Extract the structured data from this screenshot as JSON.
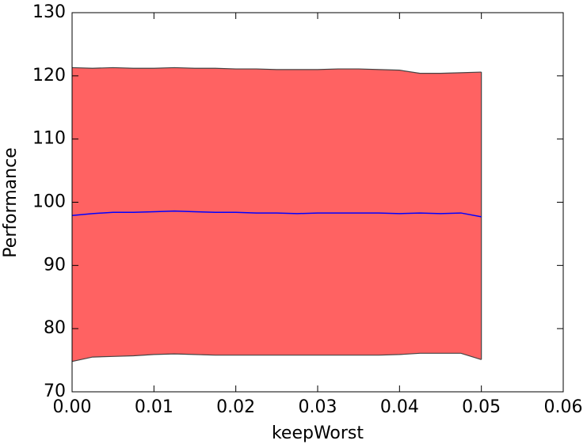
{
  "chart_data": {
    "type": "line",
    "xlabel": "keepWorst",
    "ylabel": "Performance",
    "x": [
      0,
      0.0025,
      0.005,
      0.0075,
      0.01,
      0.0125,
      0.015,
      0.0175,
      0.02,
      0.0225,
      0.025,
      0.0275,
      0.03,
      0.0325,
      0.035,
      0.0375,
      0.04,
      0.0425,
      0.045,
      0.0475,
      0.05
    ],
    "series": [
      {
        "color": "#0000ff",
        "values": [
          97.9,
          98.2,
          98.4,
          98.4,
          98.5,
          98.6,
          98.5,
          98.4,
          98.4,
          98.3,
          98.3,
          98.2,
          98.3,
          98.3,
          98.3,
          98.3,
          98.2,
          98.3,
          98.2,
          98.3,
          97.7
        ]
      }
    ],
    "band": {
      "color": "#ff6262",
      "edge_color": "#444444",
      "upper": [
        121.3,
        121.2,
        121.3,
        121.2,
        121.2,
        121.3,
        121.2,
        121.2,
        121.1,
        121.1,
        121.0,
        121.0,
        121.0,
        121.1,
        121.1,
        121.0,
        120.9,
        120.4,
        120.4,
        120.5,
        120.6
      ],
      "lower": [
        74.8,
        75.5,
        75.6,
        75.7,
        75.9,
        76.0,
        75.9,
        75.8,
        75.8,
        75.8,
        75.8,
        75.8,
        75.8,
        75.8,
        75.8,
        75.8,
        75.9,
        76.1,
        76.1,
        76.1,
        75.1
      ]
    },
    "xlim": [
      0,
      0.06
    ],
    "xticks": [
      {
        "value": 0,
        "label": "0.00"
      },
      {
        "value": 0.01,
        "label": "0.01"
      },
      {
        "value": 0.02,
        "label": "0.02"
      },
      {
        "value": 0.03,
        "label": "0.03"
      },
      {
        "value": 0.04,
        "label": "0.04"
      },
      {
        "value": 0.05,
        "label": "0.05"
      },
      {
        "value": 0.06,
        "label": "0.06"
      }
    ],
    "ylim": [
      70,
      130
    ],
    "yticks": [
      70,
      80,
      90,
      100,
      110,
      120,
      130
    ],
    "grid": false
  }
}
